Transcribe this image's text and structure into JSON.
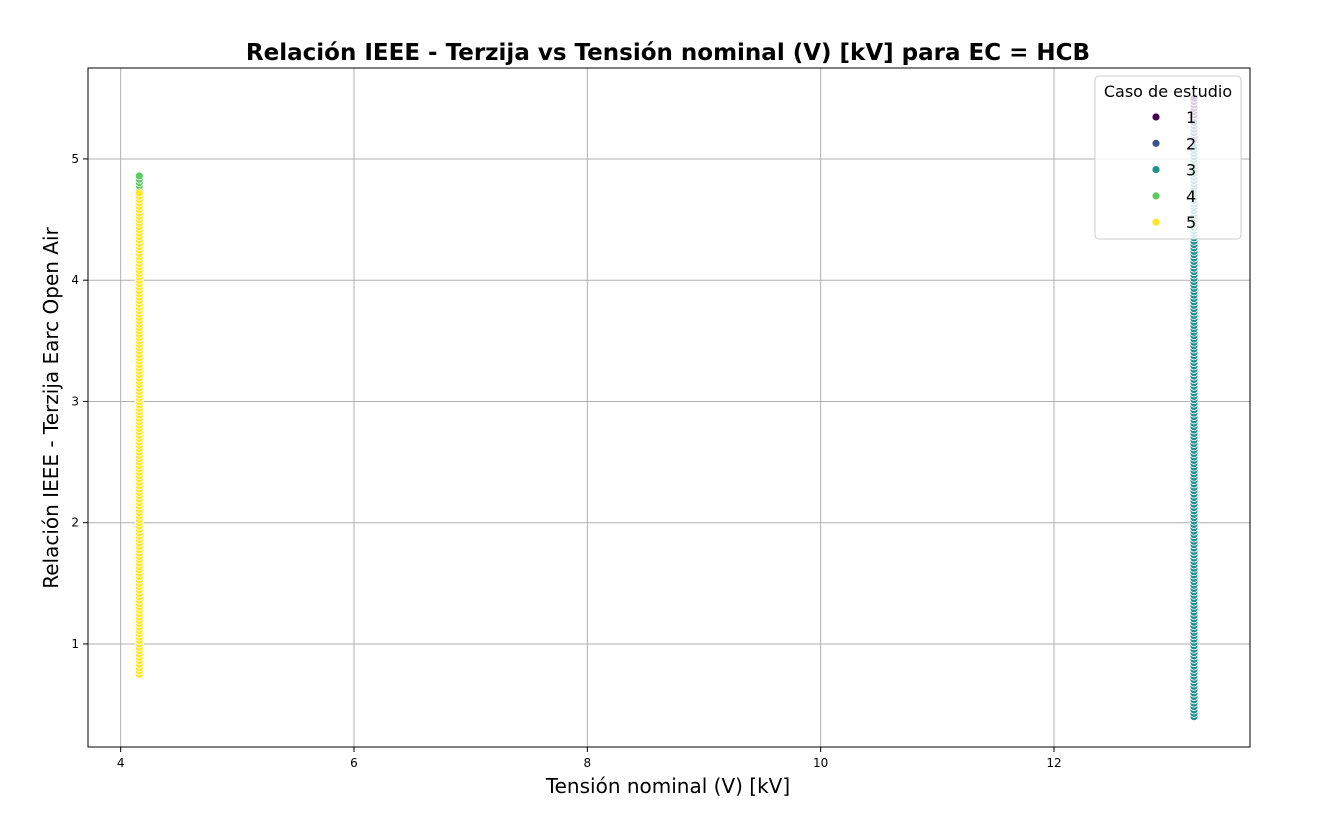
{
  "chart_data": {
    "type": "scatter",
    "title": "Relación IEEE - Terzija vs Tensión nominal (V) [kV] para EC = HCB",
    "xlabel": "Tensión nominal (V) [kV]",
    "ylabel": "Relación IEEE - Terzija Earc Open Air",
    "xlim": [
      3.72,
      13.68
    ],
    "ylim": [
      0.15,
      5.75
    ],
    "xticks": [
      4,
      6,
      8,
      10,
      12
    ],
    "yticks": [
      1,
      2,
      3,
      4,
      5
    ],
    "grid": true,
    "legend": {
      "title": "Caso de estudio",
      "position": "top-right",
      "entries": [
        {
          "label": "1",
          "color": "#440154"
        },
        {
          "label": "2",
          "color": "#3b528b"
        },
        {
          "label": "3",
          "color": "#21918c"
        },
        {
          "label": "4",
          "color": "#5ec962"
        },
        {
          "label": "5",
          "color": "#fde725"
        }
      ]
    },
    "series": [
      {
        "name": "1",
        "color": "#440154",
        "x": 13.2,
        "y_min": 5.2,
        "y_max": 5.5
      },
      {
        "name": "2",
        "color": "#3b528b",
        "x": 13.2,
        "y_min": 4.6,
        "y_max": 5.3
      },
      {
        "name": "3",
        "color": "#21918c",
        "x": 13.2,
        "y_min": 0.4,
        "y_max": 5.1
      },
      {
        "name": "4",
        "color": "#5ec962",
        "x": 4.16,
        "y_min": 3.9,
        "y_max": 4.86
      },
      {
        "name": "5",
        "color": "#fde725",
        "x": 4.16,
        "y_min": 0.75,
        "y_max": 4.72
      }
    ]
  }
}
